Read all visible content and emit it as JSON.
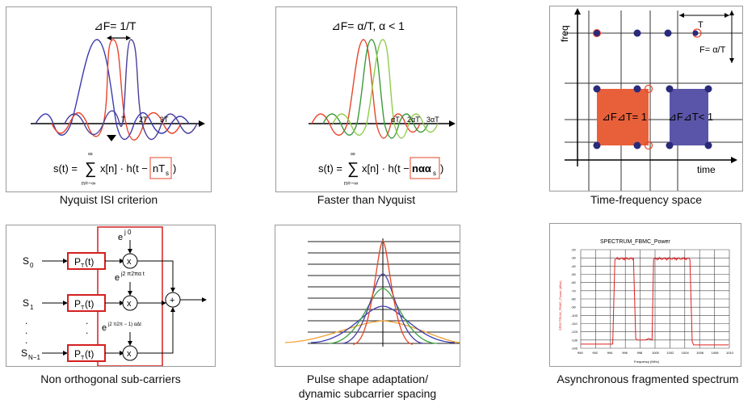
{
  "panels": [
    {
      "caption": "Nyquist ISI criterion",
      "top_label": "⊿F= 1/T",
      "ticks": [
        "T",
        "2T",
        "3T"
      ],
      "formula": {
        "lhs": "s(t) = ",
        "sum_top": "∞",
        "sum_bottom": "n=−∞",
        "body": "x[n] · h(t −",
        "boxed": "nT",
        "boxed_sub": "s",
        "close": ")"
      }
    },
    {
      "caption": "Faster than Nyquist",
      "top_label": "⊿F= α/T,   α < 1",
      "ticks": [
        "αT",
        "2αT",
        "3αT"
      ],
      "formula": {
        "lhs": "s(t) = ",
        "sum_top": "∞",
        "sum_bottom": "n=−∞",
        "body": "x[n] · h(t −",
        "boxed": "nαα",
        "boxed_sub": "s",
        "close": ")"
      }
    },
    {
      "caption": "Time-frequency space",
      "y_label": "freq",
      "x_label": "time",
      "t_label": "T",
      "f_label": "F= α/T",
      "box1_label": "⊿F⊿T= 1",
      "box2_label": "⊿F⊿T< 1"
    },
    {
      "caption": "Non orthogonal sub-carriers",
      "inputs": [
        "S",
        "S",
        "S"
      ],
      "input_subs": [
        "0",
        "1",
        "N−1"
      ],
      "filter_label": "P",
      "filter_sub": "T",
      "filter_arg": "(t)",
      "dots": ".",
      "exp_base": "e",
      "exp1": "j 0",
      "exp2": "j2 π2πα t",
      "exp3": "j2 π2π − 1) αΔt",
      "mult": "x",
      "sum": "+"
    },
    {
      "caption_line1": "Pulse shape adaptation/",
      "caption_line2": "dynamic subcarrier spacing"
    },
    {
      "caption": "Asynchronous fragmented spectrum",
      "title": "SPECTRUM_FBMC_Power",
      "xlabel": "Frequency (MHz)",
      "ylabel": "SPECTRUM_FBMC_Power (dBm)",
      "x_ticks": [
        "990",
        "992",
        "994",
        "996",
        "998",
        "1000",
        "1002",
        "1004",
        "1006",
        "1008",
        "1010"
      ],
      "y_ticks": [
        "-20",
        "-30",
        "-40",
        "-50",
        "-60",
        "-70",
        "-80",
        "-90",
        "-100",
        "-110",
        "-120",
        "-130",
        "-140"
      ]
    }
  ],
  "colors": {
    "red": "#e8452a",
    "blue": "#3b3b9a",
    "green": "#7fbf3f",
    "orange": "#f0a030",
    "box_red": "#e8603a",
    "box_blue": "#5a55a8",
    "frame_red": "#d42020"
  }
}
